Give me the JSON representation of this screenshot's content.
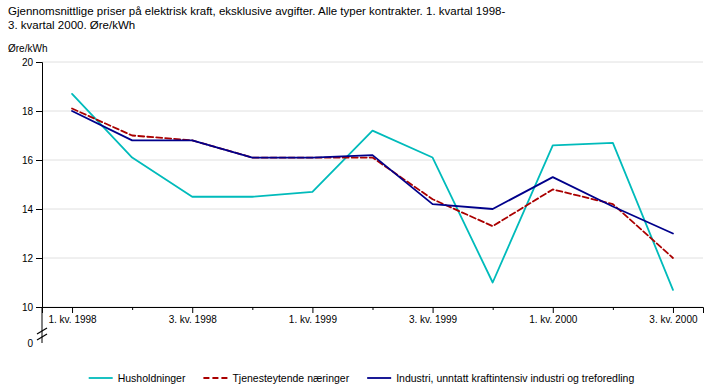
{
  "chart_data": {
    "type": "line",
    "title": "Gjennomsnittlige priser på elektrisk kraft, eksklusive avgifter. Alle typer kontrakter. 1. kvartal 1998-\n3. kvartal 2000. Øre/kWh",
    "ylabel": "Øre/kWh",
    "categories": [
      "1. kv. 1998",
      null,
      "3. kv. 1998",
      null,
      "1. kv. 1999",
      null,
      "3. kv. 1999",
      null,
      "1. kv. 2000",
      null,
      "3. kv. 2000"
    ],
    "series": [
      {
        "name": "Husholdninger",
        "color": "#00BBBB",
        "line_style": "solid",
        "values": [
          18.7,
          16.1,
          14.5,
          14.5,
          14.7,
          17.2,
          16.1,
          11.0,
          16.6,
          16.7,
          10.7
        ]
      },
      {
        "name": "Tjenesteytende næringer",
        "color": "#AA0000",
        "line_style": "dashed",
        "values": [
          18.1,
          17.0,
          16.8,
          16.1,
          16.1,
          16.1,
          14.4,
          13.3,
          14.8,
          14.2,
          12.0
        ]
      },
      {
        "name": "Industri, unntatt kraftintensiv industri og treforedling",
        "color": "#00008B",
        "line_style": "solid",
        "values": [
          18.0,
          16.8,
          16.8,
          16.1,
          16.1,
          16.2,
          14.2,
          14.0,
          15.3,
          14.1,
          13.0
        ]
      }
    ],
    "ylim": [
      10,
      20
    ],
    "yticks": [
      10,
      12,
      14,
      16,
      18,
      20
    ],
    "annotations": [
      {
        "text": "0"
      }
    ],
    "grid": true,
    "legend": "bottom"
  }
}
